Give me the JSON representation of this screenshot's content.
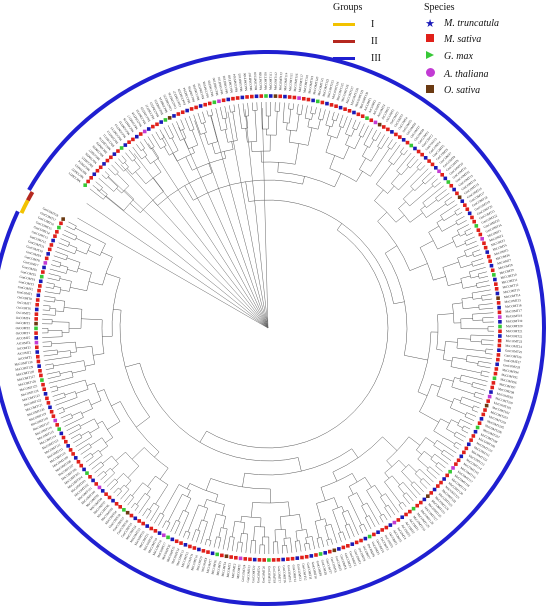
{
  "legend": {
    "groups_title": "Groups",
    "groups": [
      {
        "label": "I",
        "color": "#f2c200"
      },
      {
        "label": "II",
        "color": "#b5281f"
      },
      {
        "label": "III",
        "color": "#1f1fd0"
      }
    ],
    "species_title": "Species",
    "species": [
      {
        "label": "M. truncatula",
        "color": "#1a1ab8",
        "shape": "star-icon"
      },
      {
        "label": "M. sativa",
        "color": "#e0201a",
        "shape": "square-icon"
      },
      {
        "label": "G. max",
        "color": "#37c837",
        "shape": "triangle-icon"
      },
      {
        "label": "A. thaliana",
        "color": "#c23bd4",
        "shape": "circle-icon"
      },
      {
        "label": "O. sativa",
        "color": "#6b3a12",
        "shape": "square-icon"
      }
    ]
  },
  "tree": {
    "outer_ring_color": "#1f1fd0",
    "visible_leaf_labels": [
      "MtCOMT1",
      "MtCOMT2",
      "MtCOMT3",
      "MtCOMT4",
      "MtCOMT5",
      "MtCOMT6",
      "MtCOMT7",
      "MtCOMT8",
      "MtCOMT9",
      "MtCOMT10",
      "MtCOMT11",
      "MtCOMT12",
      "MsCOMT13",
      "MsCOMT14",
      "MsCOMT15",
      "MsCOMT16",
      "MsCOMT17",
      "MsCOMT18",
      "MsCOMT19",
      "MsCOMT20",
      "MsCOMT21",
      "MsCOMT22",
      "MsCOMT23",
      "MsCOMT24",
      "GmCOMT25",
      "GmCOMT26",
      "GmCOMT27",
      "GmCOMT28",
      "MsCOMT94",
      "MsCOMT95",
      "MsCOMT96",
      "MsCOMT97",
      "MsCOMT98",
      "MsCOMT99",
      "MsCOMT100",
      "MsCOMT101",
      "MsCOMT102",
      "MsCOMT103",
      "MsCOMT104",
      "MsCOMT105",
      "MsCOMT106",
      "MsCOMT107",
      "MsCOMT108",
      "MsCOMT109",
      "MsCOMT110",
      "MsCOMT111",
      "MsCOMT112",
      "MsCOMT113",
      "MsCOMT114",
      "MsCOMT115",
      "MsCOMT116",
      "MsCOMT117",
      "MsCOMT118",
      "MsCOMT119",
      "MsCOMT120",
      "MsCOMT121",
      "MsCOMT122",
      "MsCOMT123",
      "MsCOMT124",
      "MsCOMT125",
      "MsCOMT126",
      "MsCOMT127",
      "MsCOMT128",
      "MsCOMT129",
      "MsCOMT130",
      "AtCOMT1",
      "AtCOMT2",
      "AtCOMT3",
      "AtCOMT4",
      "AtCOMT5",
      "OsCOMT1",
      "OsCOMT2",
      "OsCOMT3",
      "OsCOMT4",
      "OsCOMT5",
      "OsCOMT6",
      "OsCOMT7",
      "OsCOMT8",
      "GmCOMT1",
      "GmCOMT2",
      "GmCOMT3",
      "GmCOMT4",
      "GmCOMT5",
      "GmCOMT6",
      "GmCOMT7",
      "GmCOMT8",
      "GmCOMT9",
      "GmCOMT10",
      "GmCOMT11",
      "GmCOMT12",
      "GmCOMT13",
      "GmCOMT14",
      "GmCOMT15",
      "GmCOMT16",
      "GmCOMT17",
      "GmCOMT18",
      "GmCOMT19",
      "GmCOMT20",
      "GmCOMT21",
      "GmCOMT22",
      "GmCOMT23",
      "GmCOMT24"
    ]
  }
}
